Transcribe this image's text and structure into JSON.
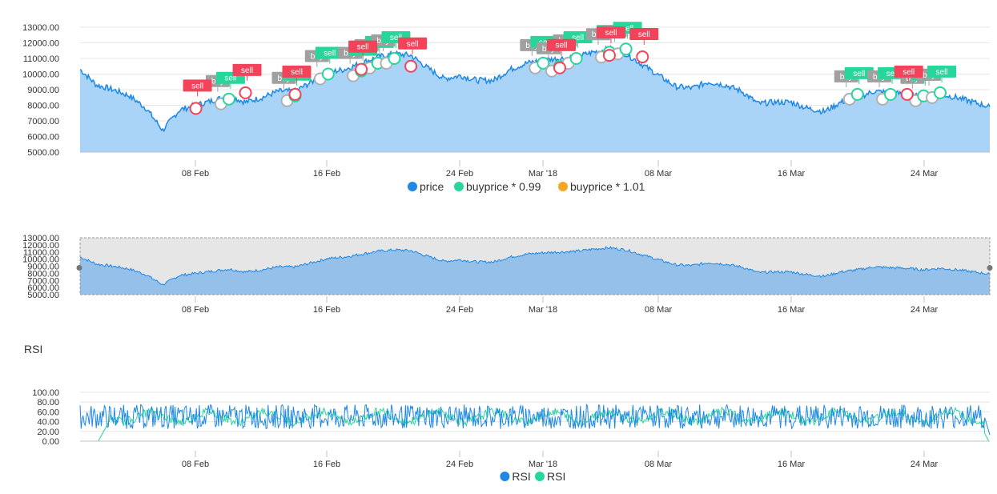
{
  "colors": {
    "price": "#1e88e5",
    "price_fill": "#a9d4f8",
    "buy": "#26d69b",
    "sell": "#f2435a",
    "sell_price": "#f5a623",
    "flag_gray": "#a0a0a0",
    "rsi_a": "#1e88e5",
    "rsi_b": "#26d69b",
    "grid": "#e6e6e6",
    "axis": "#c0c0c0",
    "navigator_bg": "#e6e6e6"
  },
  "x_axis_ticks": [
    "08 Feb",
    "16 Feb",
    "24 Feb",
    "Mar '18",
    "08 Mar",
    "16 Mar",
    "24 Mar"
  ],
  "main": {
    "y_ticks": [
      "13000.00",
      "12000.00",
      "11000.00",
      "10000.00",
      "9000.00",
      "8000.00",
      "7000.00",
      "6000.00",
      "5000.00"
    ],
    "legend": [
      {
        "label": "price",
        "color": "#1e88e5"
      },
      {
        "label": "buyprice * 0.99",
        "color": "#26d69b"
      },
      {
        "label": "buyprice * 1.01",
        "color": "#f5a623"
      }
    ]
  },
  "navigator": {
    "y_ticks": [
      "13000.00",
      "12000.00",
      "11000.00",
      "10000.00",
      "9000.00",
      "8000.00",
      "7000.00",
      "6000.00",
      "5000.00"
    ]
  },
  "rsi": {
    "title": "RSI",
    "y_ticks": [
      "100.00",
      "80.00",
      "60.00",
      "40.00",
      "20.00",
      "0.00"
    ],
    "legend": [
      {
        "label": "RSI",
        "color": "#1e88e5"
      },
      {
        "label": "RSI",
        "color": "#26d69b"
      }
    ]
  },
  "flags": {
    "buy_label": "buy",
    "sell_label": "sell"
  },
  "chart_data": [
    {
      "type": "area",
      "x_range": [
        "2018-02-01",
        "2018-03-28"
      ],
      "ylim": [
        5000,
        13000
      ],
      "grid": true,
      "legend_position": "bottom",
      "series": [
        {
          "name": "price",
          "x": [
            "2018-02-01",
            "2018-02-02",
            "2018-02-03",
            "2018-02-04",
            "2018-02-05",
            "2018-02-06",
            "2018-02-07",
            "2018-02-08",
            "2018-02-09",
            "2018-02-10",
            "2018-02-11",
            "2018-02-12",
            "2018-02-13",
            "2018-02-14",
            "2018-02-15",
            "2018-02-16",
            "2018-02-17",
            "2018-02-18",
            "2018-02-19",
            "2018-02-20",
            "2018-02-21",
            "2018-02-22",
            "2018-02-23",
            "2018-02-24",
            "2018-02-25",
            "2018-02-26",
            "2018-02-27",
            "2018-02-28",
            "2018-03-01",
            "2018-03-02",
            "2018-03-03",
            "2018-03-04",
            "2018-03-05",
            "2018-03-06",
            "2018-03-07",
            "2018-03-08",
            "2018-03-09",
            "2018-03-10",
            "2018-03-11",
            "2018-03-12",
            "2018-03-13",
            "2018-03-14",
            "2018-03-15",
            "2018-03-16",
            "2018-03-17",
            "2018-03-18",
            "2018-03-19",
            "2018-03-20",
            "2018-03-21",
            "2018-03-22",
            "2018-03-23",
            "2018-03-24",
            "2018-03-25",
            "2018-03-26",
            "2018-03-27",
            "2018-03-28"
          ],
          "values": [
            10300,
            9300,
            9000,
            8600,
            7800,
            6400,
            7700,
            8000,
            8300,
            8600,
            8200,
            8500,
            8900,
            8900,
            9500,
            10100,
            10300,
            10700,
            11100,
            11300,
            11200,
            10400,
            9700,
            9900,
            9600,
            9600,
            10300,
            10700,
            10900,
            11000,
            11100,
            11400,
            11600,
            11300,
            10600,
            9900,
            9200,
            9100,
            9500,
            9300,
            8900,
            8100,
            8200,
            8200,
            7800,
            7600,
            8200,
            8500,
            8900,
            8800,
            8700,
            8500,
            8700,
            8500,
            8200,
            7900
          ]
        },
        {
          "name": "buyprice * 0.99",
          "x": [
            "2018-02-10",
            "2018-02-14",
            "2018-02-16",
            "2018-02-18",
            "2018-02-19",
            "2018-02-20",
            "2018-03-01",
            "2018-03-02",
            "2018-03-03",
            "2018-03-05",
            "2018-03-06",
            "2018-03-20",
            "2018-03-22",
            "2018-03-24",
            "2018-03-25"
          ],
          "values": [
            8400,
            8600,
            10000,
            10200,
            10700,
            11000,
            10700,
            10500,
            11000,
            11400,
            11600,
            8700,
            8700,
            8600,
            8800
          ]
        },
        {
          "name": "buyprice * 1.01",
          "x": [
            "2018-02-08",
            "2018-02-11",
            "2018-02-14",
            "2018-02-18",
            "2018-02-21",
            "2018-03-02",
            "2018-03-05",
            "2018-03-07",
            "2018-03-23"
          ],
          "values": [
            7800,
            8800,
            8700,
            10300,
            10500,
            10400,
            11200,
            11100,
            8700
          ]
        }
      ]
    },
    {
      "type": "line",
      "title": "RSI",
      "ylim": [
        0,
        100
      ],
      "grid": true,
      "legend_position": "bottom",
      "series": [
        {
          "name": "RSI",
          "mean": 50,
          "min": 15,
          "max": 80
        },
        {
          "name": "RSI",
          "mean": 50,
          "min": 10,
          "max": 75
        }
      ]
    }
  ]
}
